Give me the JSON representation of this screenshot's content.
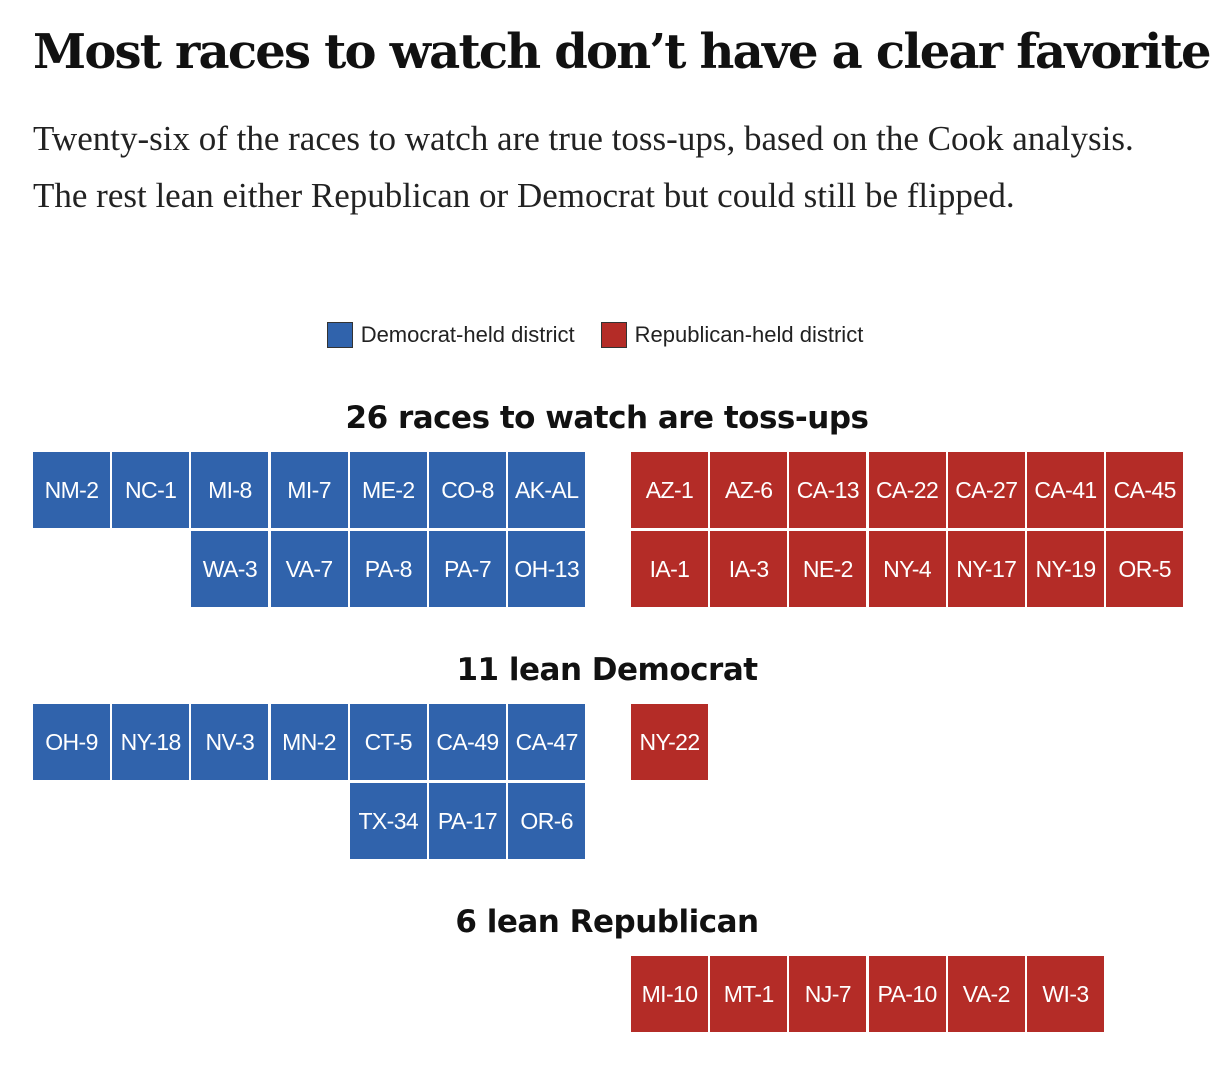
{
  "title": "Most races to watch don’t have a clear favorite",
  "subtitle": "Twenty-six of the races to watch are true toss-ups, based on the Cook analysis. The rest lean either Republican or Democrat but could still be flipped.",
  "legend": {
    "dem_label": "Democrat-held district",
    "rep_label": "Republican-held district"
  },
  "colors": {
    "dem": "#3063ac",
    "rep": "#b42c27"
  },
  "chart_data": {
    "type": "table",
    "sections": [
      {
        "title": "26 races to watch are toss-ups",
        "dem_rows": [
          [
            "NM-2",
            "NC-1",
            "MI-8",
            "MI-7",
            "ME-2",
            "CO-8",
            "AK-AL"
          ],
          [
            "WA-3",
            "VA-7",
            "PA-8",
            "PA-7",
            "OH-13"
          ]
        ],
        "rep_rows": [
          [
            "AZ-1",
            "AZ-6",
            "CA-13",
            "CA-22",
            "CA-27",
            "CA-41",
            "CA-45"
          ],
          [
            "IA-1",
            "IA-3",
            "NE-2",
            "NY-4",
            "NY-17",
            "NY-19",
            "OR-5"
          ]
        ]
      },
      {
        "title": "11 lean Democrat",
        "dem_rows": [
          [
            "OH-9",
            "NY-18",
            "NV-3",
            "MN-2",
            "CT-5",
            "CA-49",
            "CA-47"
          ],
          [
            "TX-34",
            "PA-17",
            "OR-6"
          ]
        ],
        "rep_rows": [
          [
            "NY-22"
          ]
        ]
      },
      {
        "title": "6 lean Republican",
        "dem_rows": [],
        "rep_rows": [
          [
            "MI-10",
            "MT-1",
            "NJ-7",
            "PA-10",
            "VA-2",
            "WI-3"
          ]
        ]
      }
    ]
  }
}
